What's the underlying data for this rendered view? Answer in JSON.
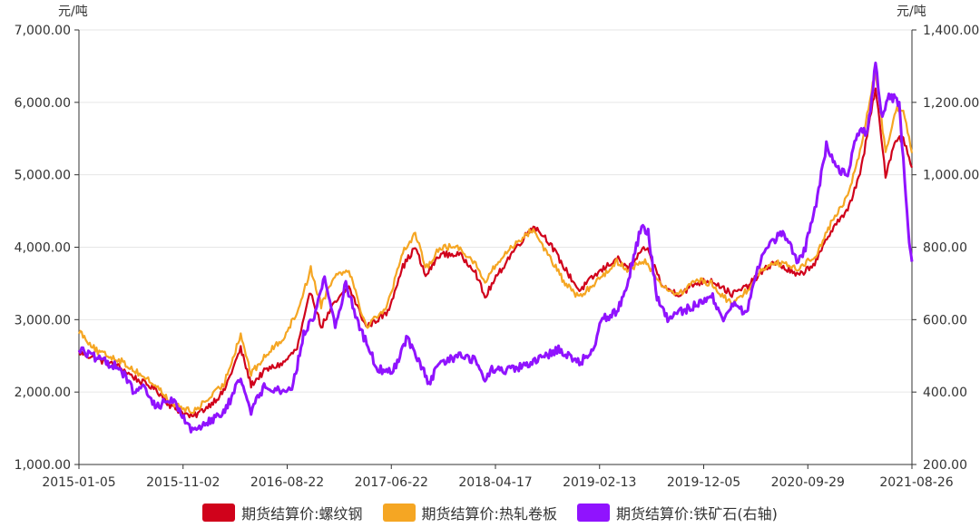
{
  "chart_data": {
    "type": "line",
    "left_unit": "元/吨",
    "right_unit": "元/吨",
    "left_axis": {
      "min": 1000,
      "max": 7000,
      "ticks": [
        "1,000.00",
        "2,000.00",
        "3,000.00",
        "4,000.00",
        "5,000.00",
        "6,000.00",
        "7,000.00"
      ]
    },
    "right_axis": {
      "min": 200,
      "max": 1400,
      "ticks": [
        "200.00",
        "400.00",
        "600.00",
        "800.00",
        "1,000.00",
        "1,200.00",
        "1,400.00"
      ]
    },
    "x_ticks": [
      "2015-01-05",
      "2015-11-02",
      "2016-08-22",
      "2017-06-22",
      "2018-04-17",
      "2019-02-13",
      "2019-12-05",
      "2020-09-29",
      "2021-08-26"
    ],
    "grid": true,
    "legend_position": "bottom",
    "series": [
      {
        "name": "期货结算价:螺纹钢",
        "axis": "left",
        "color": "#d0021b",
        "points": [
          [
            "2015-01-05",
            2550
          ],
          [
            "2015-03-01",
            2450
          ],
          [
            "2015-05-01",
            2350
          ],
          [
            "2015-07-01",
            2150
          ],
          [
            "2015-08-15",
            2050
          ],
          [
            "2015-10-01",
            1800
          ],
          [
            "2015-11-02",
            1720
          ],
          [
            "2015-12-01",
            1650
          ],
          [
            "2016-01-15",
            1800
          ],
          [
            "2016-03-01",
            2000
          ],
          [
            "2016-04-20",
            2600
          ],
          [
            "2016-05-20",
            2100
          ],
          [
            "2016-07-01",
            2300
          ],
          [
            "2016-08-22",
            2400
          ],
          [
            "2016-10-01",
            2600
          ],
          [
            "2016-11-10",
            3400
          ],
          [
            "2016-12-10",
            2900
          ],
          [
            "2017-01-15",
            3200
          ],
          [
            "2017-03-01",
            3450
          ],
          [
            "2017-04-20",
            2900
          ],
          [
            "2017-06-22",
            3100
          ],
          [
            "2017-08-01",
            3700
          ],
          [
            "2017-09-10",
            4000
          ],
          [
            "2017-10-10",
            3600
          ],
          [
            "2017-11-20",
            3900
          ],
          [
            "2018-01-15",
            3900
          ],
          [
            "2018-03-01",
            3700
          ],
          [
            "2018-04-01",
            3300
          ],
          [
            "2018-04-17",
            3450
          ],
          [
            "2018-06-15",
            3900
          ],
          [
            "2018-08-20",
            4300
          ],
          [
            "2018-10-01",
            4100
          ],
          [
            "2018-11-20",
            3700
          ],
          [
            "2019-01-01",
            3400
          ],
          [
            "2019-02-13",
            3600
          ],
          [
            "2019-04-20",
            3850
          ],
          [
            "2019-05-20",
            3700
          ],
          [
            "2019-07-15",
            4000
          ],
          [
            "2019-09-01",
            3450
          ],
          [
            "2019-10-20",
            3350
          ],
          [
            "2019-12-05",
            3500
          ],
          [
            "2020-01-20",
            3550
          ],
          [
            "2020-03-20",
            3350
          ],
          [
            "2020-05-01",
            3450
          ],
          [
            "2020-06-15",
            3650
          ],
          [
            "2020-07-20",
            3800
          ],
          [
            "2020-09-29",
            3600
          ],
          [
            "2020-11-20",
            3800
          ],
          [
            "2021-01-10",
            4300
          ],
          [
            "2021-02-20",
            4500
          ],
          [
            "2021-04-01",
            5100
          ],
          [
            "2021-05-12",
            6200
          ],
          [
            "2021-06-10",
            5000
          ],
          [
            "2021-07-10",
            5500
          ],
          [
            "2021-08-01",
            5500
          ],
          [
            "2021-08-26",
            5100
          ]
        ]
      },
      {
        "name": "期货结算价:热轧卷板",
        "axis": "left",
        "color": "#f5a623",
        "points": [
          [
            "2015-01-05",
            2850
          ],
          [
            "2015-03-01",
            2550
          ],
          [
            "2015-05-01",
            2450
          ],
          [
            "2015-07-01",
            2250
          ],
          [
            "2015-08-15",
            2100
          ],
          [
            "2015-10-01",
            1850
          ],
          [
            "2015-11-02",
            1780
          ],
          [
            "2015-12-01",
            1720
          ],
          [
            "2016-01-15",
            1900
          ],
          [
            "2016-03-01",
            2100
          ],
          [
            "2016-04-20",
            2800
          ],
          [
            "2016-05-20",
            2250
          ],
          [
            "2016-07-01",
            2500
          ],
          [
            "2016-08-22",
            2750
          ],
          [
            "2016-10-01",
            3100
          ],
          [
            "2016-11-10",
            3700
          ],
          [
            "2016-12-10",
            3200
          ],
          [
            "2017-01-15",
            3600
          ],
          [
            "2017-03-01",
            3700
          ],
          [
            "2017-04-20",
            2900
          ],
          [
            "2017-06-22",
            3200
          ],
          [
            "2017-08-01",
            3900
          ],
          [
            "2017-09-10",
            4200
          ],
          [
            "2017-10-10",
            3700
          ],
          [
            "2017-11-20",
            4000
          ],
          [
            "2018-01-15",
            4000
          ],
          [
            "2018-03-01",
            3800
          ],
          [
            "2018-04-01",
            3500
          ],
          [
            "2018-04-17",
            3650
          ],
          [
            "2018-06-15",
            4000
          ],
          [
            "2018-08-20",
            4250
          ],
          [
            "2018-10-01",
            3900
          ],
          [
            "2018-11-20",
            3500
          ],
          [
            "2019-01-01",
            3300
          ],
          [
            "2019-02-13",
            3500
          ],
          [
            "2019-04-20",
            3800
          ],
          [
            "2019-05-20",
            3700
          ],
          [
            "2019-07-15",
            3800
          ],
          [
            "2019-09-01",
            3450
          ],
          [
            "2019-10-20",
            3350
          ],
          [
            "2019-12-05",
            3550
          ],
          [
            "2020-01-20",
            3500
          ],
          [
            "2020-03-20",
            3200
          ],
          [
            "2020-05-01",
            3400
          ],
          [
            "2020-06-15",
            3700
          ],
          [
            "2020-07-20",
            3800
          ],
          [
            "2020-09-29",
            3700
          ],
          [
            "2020-11-20",
            3900
          ],
          [
            "2021-01-10",
            4400
          ],
          [
            "2021-02-20",
            4700
          ],
          [
            "2021-04-01",
            5400
          ],
          [
            "2021-05-12",
            6450
          ],
          [
            "2021-06-10",
            5300
          ],
          [
            "2021-07-10",
            5900
          ],
          [
            "2021-08-01",
            5900
          ],
          [
            "2021-08-26",
            5300
          ]
        ]
      },
      {
        "name": "期货结算价:铁矿石(右轴)",
        "axis": "right",
        "color": "#9013fe",
        "points": [
          [
            "2015-01-05",
            520
          ],
          [
            "2015-03-01",
            490
          ],
          [
            "2015-05-01",
            470
          ],
          [
            "2015-06-15",
            400
          ],
          [
            "2015-07-15",
            410
          ],
          [
            "2015-08-15",
            360
          ],
          [
            "2015-10-01",
            380
          ],
          [
            "2015-11-02",
            340
          ],
          [
            "2015-12-01",
            290
          ],
          [
            "2016-01-15",
            320
          ],
          [
            "2016-03-01",
            340
          ],
          [
            "2016-04-20",
            440
          ],
          [
            "2016-05-20",
            350
          ],
          [
            "2016-07-01",
            420
          ],
          [
            "2016-08-22",
            400
          ],
          [
            "2016-09-20",
            420
          ],
          [
            "2016-10-20",
            560
          ],
          [
            "2016-11-20",
            610
          ],
          [
            "2016-12-20",
            720
          ],
          [
            "2017-01-20",
            580
          ],
          [
            "2017-02-20",
            700
          ],
          [
            "2017-04-01",
            580
          ],
          [
            "2017-05-20",
            470
          ],
          [
            "2017-06-22",
            450
          ],
          [
            "2017-07-20",
            480
          ],
          [
            "2017-08-15",
            550
          ],
          [
            "2017-09-20",
            490
          ],
          [
            "2017-10-20",
            420
          ],
          [
            "2017-11-20",
            480
          ],
          [
            "2018-01-15",
            500
          ],
          [
            "2018-03-01",
            490
          ],
          [
            "2018-04-01",
            430
          ],
          [
            "2018-04-17",
            460
          ],
          [
            "2018-06-15",
            460
          ],
          [
            "2018-08-20",
            480
          ],
          [
            "2018-11-01",
            520
          ],
          [
            "2019-01-01",
            480
          ],
          [
            "2019-02-13",
            520
          ],
          [
            "2019-03-01",
            600
          ],
          [
            "2019-04-20",
            620
          ],
          [
            "2019-05-20",
            700
          ],
          [
            "2019-07-01",
            860
          ],
          [
            "2019-07-20",
            840
          ],
          [
            "2019-08-15",
            660
          ],
          [
            "2019-09-15",
            600
          ],
          [
            "2019-10-20",
            620
          ],
          [
            "2019-12-05",
            640
          ],
          [
            "2020-01-20",
            670
          ],
          [
            "2020-02-20",
            600
          ],
          [
            "2020-03-20",
            640
          ],
          [
            "2020-05-01",
            620
          ],
          [
            "2020-06-15",
            780
          ],
          [
            "2020-07-20",
            820
          ],
          [
            "2020-08-15",
            840
          ],
          [
            "2020-09-29",
            760
          ],
          [
            "2020-10-20",
            800
          ],
          [
            "2020-11-20",
            920
          ],
          [
            "2020-12-20",
            1080
          ],
          [
            "2021-01-20",
            1020
          ],
          [
            "2021-02-20",
            1000
          ],
          [
            "2021-03-20",
            1120
          ],
          [
            "2021-04-20",
            1120
          ],
          [
            "2021-05-12",
            1310
          ],
          [
            "2021-06-01",
            1150
          ],
          [
            "2021-06-20",
            1220
          ],
          [
            "2021-07-20",
            1200
          ],
          [
            "2021-08-05",
            980
          ],
          [
            "2021-08-18",
            820
          ],
          [
            "2021-08-26",
            760
          ]
        ]
      }
    ]
  }
}
